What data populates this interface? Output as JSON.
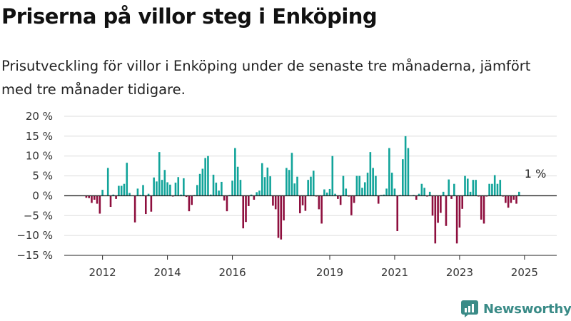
{
  "title": "Priserna på villor steg i Enköping",
  "subtitle": "Prisutveckling för villor i Enköping under de senaste tre månaderna, jämfört med tre månader tidigare.",
  "brand": {
    "name": "Newsworthy",
    "color": "#3a8b87",
    "icon": "newsworthy-logo-icon"
  },
  "colors": {
    "positive": "#12a49a",
    "negative": "#8e0f3e",
    "grid": "#dddddd",
    "axis": "#222222"
  },
  "chart_data": {
    "type": "bar",
    "x_start": "2011-07",
    "x_step": "month",
    "ylim": [
      -15,
      20
    ],
    "y_ticks": [
      -15,
      -10,
      -5,
      0,
      5,
      10,
      15,
      20
    ],
    "y_tick_labels": [
      "−15 %",
      "−10 %",
      "−5 %",
      "0 %",
      "5 %",
      "10 %",
      "15 %",
      "20 %"
    ],
    "x_ticks": [
      {
        "date": "2012-01",
        "label": "2012"
      },
      {
        "date": "2014-01",
        "label": "2014"
      },
      {
        "date": "2016-01",
        "label": "2016"
      },
      {
        "date": "2019-01",
        "label": "2019"
      },
      {
        "date": "2021-01",
        "label": "2021"
      },
      {
        "date": "2023-01",
        "label": "2023"
      },
      {
        "date": "2025-01",
        "label": "2025"
      }
    ],
    "grid": true,
    "annotation": {
      "text": "1 %",
      "date": "2025-05",
      "value": 1
    },
    "values": [
      -0.5,
      -0.6,
      -1.8,
      -1.0,
      -2.0,
      -4.5,
      1.5,
      0,
      7.0,
      -2.8,
      0.3,
      -0.8,
      2.5,
      2.5,
      3.0,
      8.3,
      0.7,
      0,
      -6.7,
      1.8,
      0.2,
      2.7,
      -4.6,
      0.5,
      -4.0,
      4.6,
      3.6,
      11.0,
      4.0,
      6.5,
      3.4,
      2.8,
      -0.2,
      3.3,
      4.7,
      0.3,
      4.4,
      -0.3,
      -3.9,
      -2.3,
      0.2,
      2.7,
      5.5,
      6.8,
      9.5,
      10.0,
      0.3,
      5.3,
      3.3,
      1.3,
      3.5,
      -1.2,
      -3.9,
      0.2,
      3.8,
      12.0,
      7.3,
      4.0,
      -8.2,
      -6.6,
      -2.6,
      0.3,
      -1.0,
      0.9,
      1.3,
      8.2,
      4.7,
      7.1,
      4.9,
      -2.5,
      -3.4,
      -10.6,
      -11.0,
      -6.2,
      7.0,
      6.5,
      10.8,
      3.1,
      4.8,
      -4.4,
      -2.4,
      -3.8,
      4.0,
      4.8,
      6.3,
      -0.2,
      -3.4,
      -7.0,
      1.6,
      0.8,
      1.7,
      10.0,
      0.5,
      -0.8,
      -2.3,
      5.0,
      1.8,
      -0.2,
      -4.9,
      -1.8,
      5.0,
      5.0,
      2.0,
      3.4,
      5.8,
      11.0,
      7.0,
      5.0,
      -2.0,
      0.2,
      0.3,
      1.8,
      12.0,
      5.8,
      1.8,
      -8.9,
      0.2,
      9.2,
      15.0,
      12.0,
      0,
      0.2,
      -1.0,
      0.5,
      3.0,
      2.0,
      -0.2,
      1.0,
      -5.0,
      -12.0,
      -6.8,
      -4.3,
      1.0,
      -7.6,
      4.1,
      -0.8,
      3.0,
      -12.0,
      -8.0,
      -3.3,
      5.0,
      4.3,
      1.0,
      4.0,
      4.0,
      -0.2,
      -6.0,
      -7.0,
      -0.2,
      3.0,
      3.0,
      5.2,
      3.0,
      4.0,
      -0.2,
      -1.8,
      -3.0,
      -1.8,
      -1.0,
      -2.0,
      1.0
    ]
  }
}
